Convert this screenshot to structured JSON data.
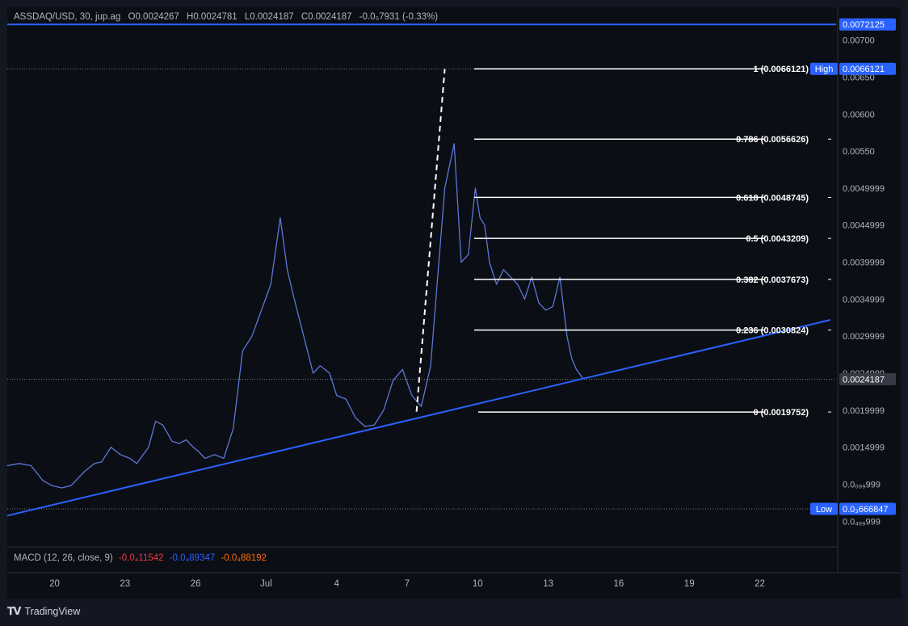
{
  "legend": {
    "symbol": "ASSDAQ/USD, 30, jup.ag",
    "open": "O0.0024267",
    "high": "H0.0024781",
    "low": "L0.0024187",
    "close": "C0.0024187",
    "change": "-0.0₅7931 (-0.33%)"
  },
  "macd": {
    "label": "MACD (12, 26, close, 9)",
    "macd_value": "-0.0₄11542",
    "signal_value": "-0.0₄89347",
    "hist_value": "-0.0₄88192"
  },
  "footer": {
    "brand": "TradingView"
  },
  "colors": {
    "background": "#0c0e15",
    "price_line": "#5b78d6",
    "trendline": "#2962ff",
    "fib": "#ffffff",
    "axis_text": "#b2b5be",
    "macd_red": "#f23645",
    "macd_blue": "#2962ff",
    "macd_orange": "#ff6d00",
    "tag_blue": "#2962ff",
    "tag_grey": "#363a45"
  },
  "chart_data": {
    "type": "line",
    "title": "ASSDAQ/USD, 30, jup.ag",
    "xlabel": "",
    "ylabel": "",
    "grid": false,
    "ylim": [
      0.0003,
      0.0073
    ],
    "x_tick_labels": [
      "20",
      "23",
      "26",
      "Jul",
      "4",
      "7",
      "10",
      "13",
      "16",
      "19",
      "22"
    ],
    "x_tick_days": [
      20,
      23,
      26,
      29,
      32,
      35,
      38,
      41,
      44,
      47,
      50
    ],
    "y_tick_labels": [
      "0.00700",
      "0.00650",
      "0.00600",
      "0.00550",
      "0.0049999",
      "0.0044999",
      "0.0039999",
      "0.0034999",
      "0.0029999",
      "0.0024999",
      "0.0019999",
      "0.0014999",
      "0.0₀₉₉999",
      "0.0₄₉₉999"
    ],
    "y_tick_values": [
      0.007,
      0.0065,
      0.006,
      0.0055,
      0.005,
      0.0045,
      0.004,
      0.0035,
      0.003,
      0.0025,
      0.002,
      0.0015,
      0.001,
      0.0005
    ],
    "series": [
      {
        "x": [
          17.0,
          17.6,
          18.0,
          18.5,
          19.0,
          19.5,
          19.9,
          20.3,
          20.7,
          21.0,
          21.3,
          21.7,
          22.0,
          22.4,
          22.8,
          23.2,
          23.5,
          24.0,
          24.3,
          24.6,
          25.0,
          25.3,
          25.6,
          25.9,
          26.1,
          26.4,
          26.8,
          27.2,
          27.6,
          28.0,
          28.4,
          28.8,
          29.2,
          29.6,
          29.9,
          30.2,
          30.6,
          31.0,
          31.3,
          31.7,
          32.0,
          32.4,
          32.8,
          33.2,
          33.6,
          34.0,
          34.4,
          34.8,
          35.2,
          35.6,
          36.0,
          36.3,
          36.6,
          37.0,
          37.3,
          37.6,
          37.9,
          38.1,
          38.3,
          38.5,
          38.8,
          39.1,
          39.4,
          39.7,
          40.0,
          40.3,
          40.6,
          40.9,
          41.2,
          41.5,
          41.8,
          42.0,
          42.2,
          42.5
        ],
        "values": [
          0.00125,
          0.00138,
          0.00125,
          0.00128,
          0.00125,
          0.00105,
          0.00098,
          0.00095,
          0.00098,
          0.00108,
          0.00118,
          0.00128,
          0.0013,
          0.0015,
          0.0014,
          0.00135,
          0.00128,
          0.0015,
          0.00185,
          0.0018,
          0.00158,
          0.00155,
          0.0016,
          0.0015,
          0.00145,
          0.00135,
          0.0014,
          0.00135,
          0.00175,
          0.0028,
          0.003,
          0.00335,
          0.0037,
          0.0046,
          0.0039,
          0.0035,
          0.003,
          0.0025,
          0.0026,
          0.0025,
          0.0022,
          0.00215,
          0.0019,
          0.00178,
          0.0018,
          0.002,
          0.0024,
          0.00255,
          0.0022,
          0.00205,
          0.0026,
          0.0038,
          0.005,
          0.0056,
          0.004,
          0.0041,
          0.005,
          0.0046,
          0.0045,
          0.004,
          0.0037,
          0.0039,
          0.0038,
          0.0037,
          0.0035,
          0.0038,
          0.00345,
          0.00335,
          0.0034,
          0.0038,
          0.003,
          0.0027,
          0.00255,
          0.00242
        ]
      }
    ],
    "trendline": {
      "x": [
        17.0,
        53.0
      ],
      "values": [
        0.0005,
        0.00322
      ]
    },
    "impulse_line": {
      "x": [
        35.4,
        36.6
      ],
      "values": [
        0.00198,
        0.00661
      ]
    },
    "fib_levels": [
      {
        "ratio": "1",
        "value": 0.0066121,
        "label": "1 (0.0066121)"
      },
      {
        "ratio": "0.786",
        "value": 0.0056626,
        "label": "0.786 (0.0056626)"
      },
      {
        "ratio": "0.618",
        "value": 0.0048745,
        "label": "0.618 (0.0048745)"
      },
      {
        "ratio": "0.5",
        "value": 0.0043209,
        "label": "0.5 (0.0043209)"
      },
      {
        "ratio": "0.382",
        "value": 0.0037673,
        "label": "0.382 (0.0037673)"
      },
      {
        "ratio": "0.236",
        "value": 0.0030824,
        "label": "0.236 (0.0030824)"
      },
      {
        "ratio": "0",
        "value": 0.0019752,
        "label": "0 (0.0019752)"
      }
    ],
    "price_tags": [
      {
        "label": "",
        "text": "0.0072125",
        "value": 0.0072125,
        "style": "blue"
      },
      {
        "label": "High",
        "text": "0.0066121",
        "value": 0.0066121,
        "style": "blue"
      },
      {
        "label": "",
        "text": "0.0024187",
        "value": 0.0024187,
        "style": "grey"
      },
      {
        "label": "Low",
        "text": "0.0₃666847",
        "value": 0.000666847,
        "style": "blue"
      }
    ]
  }
}
